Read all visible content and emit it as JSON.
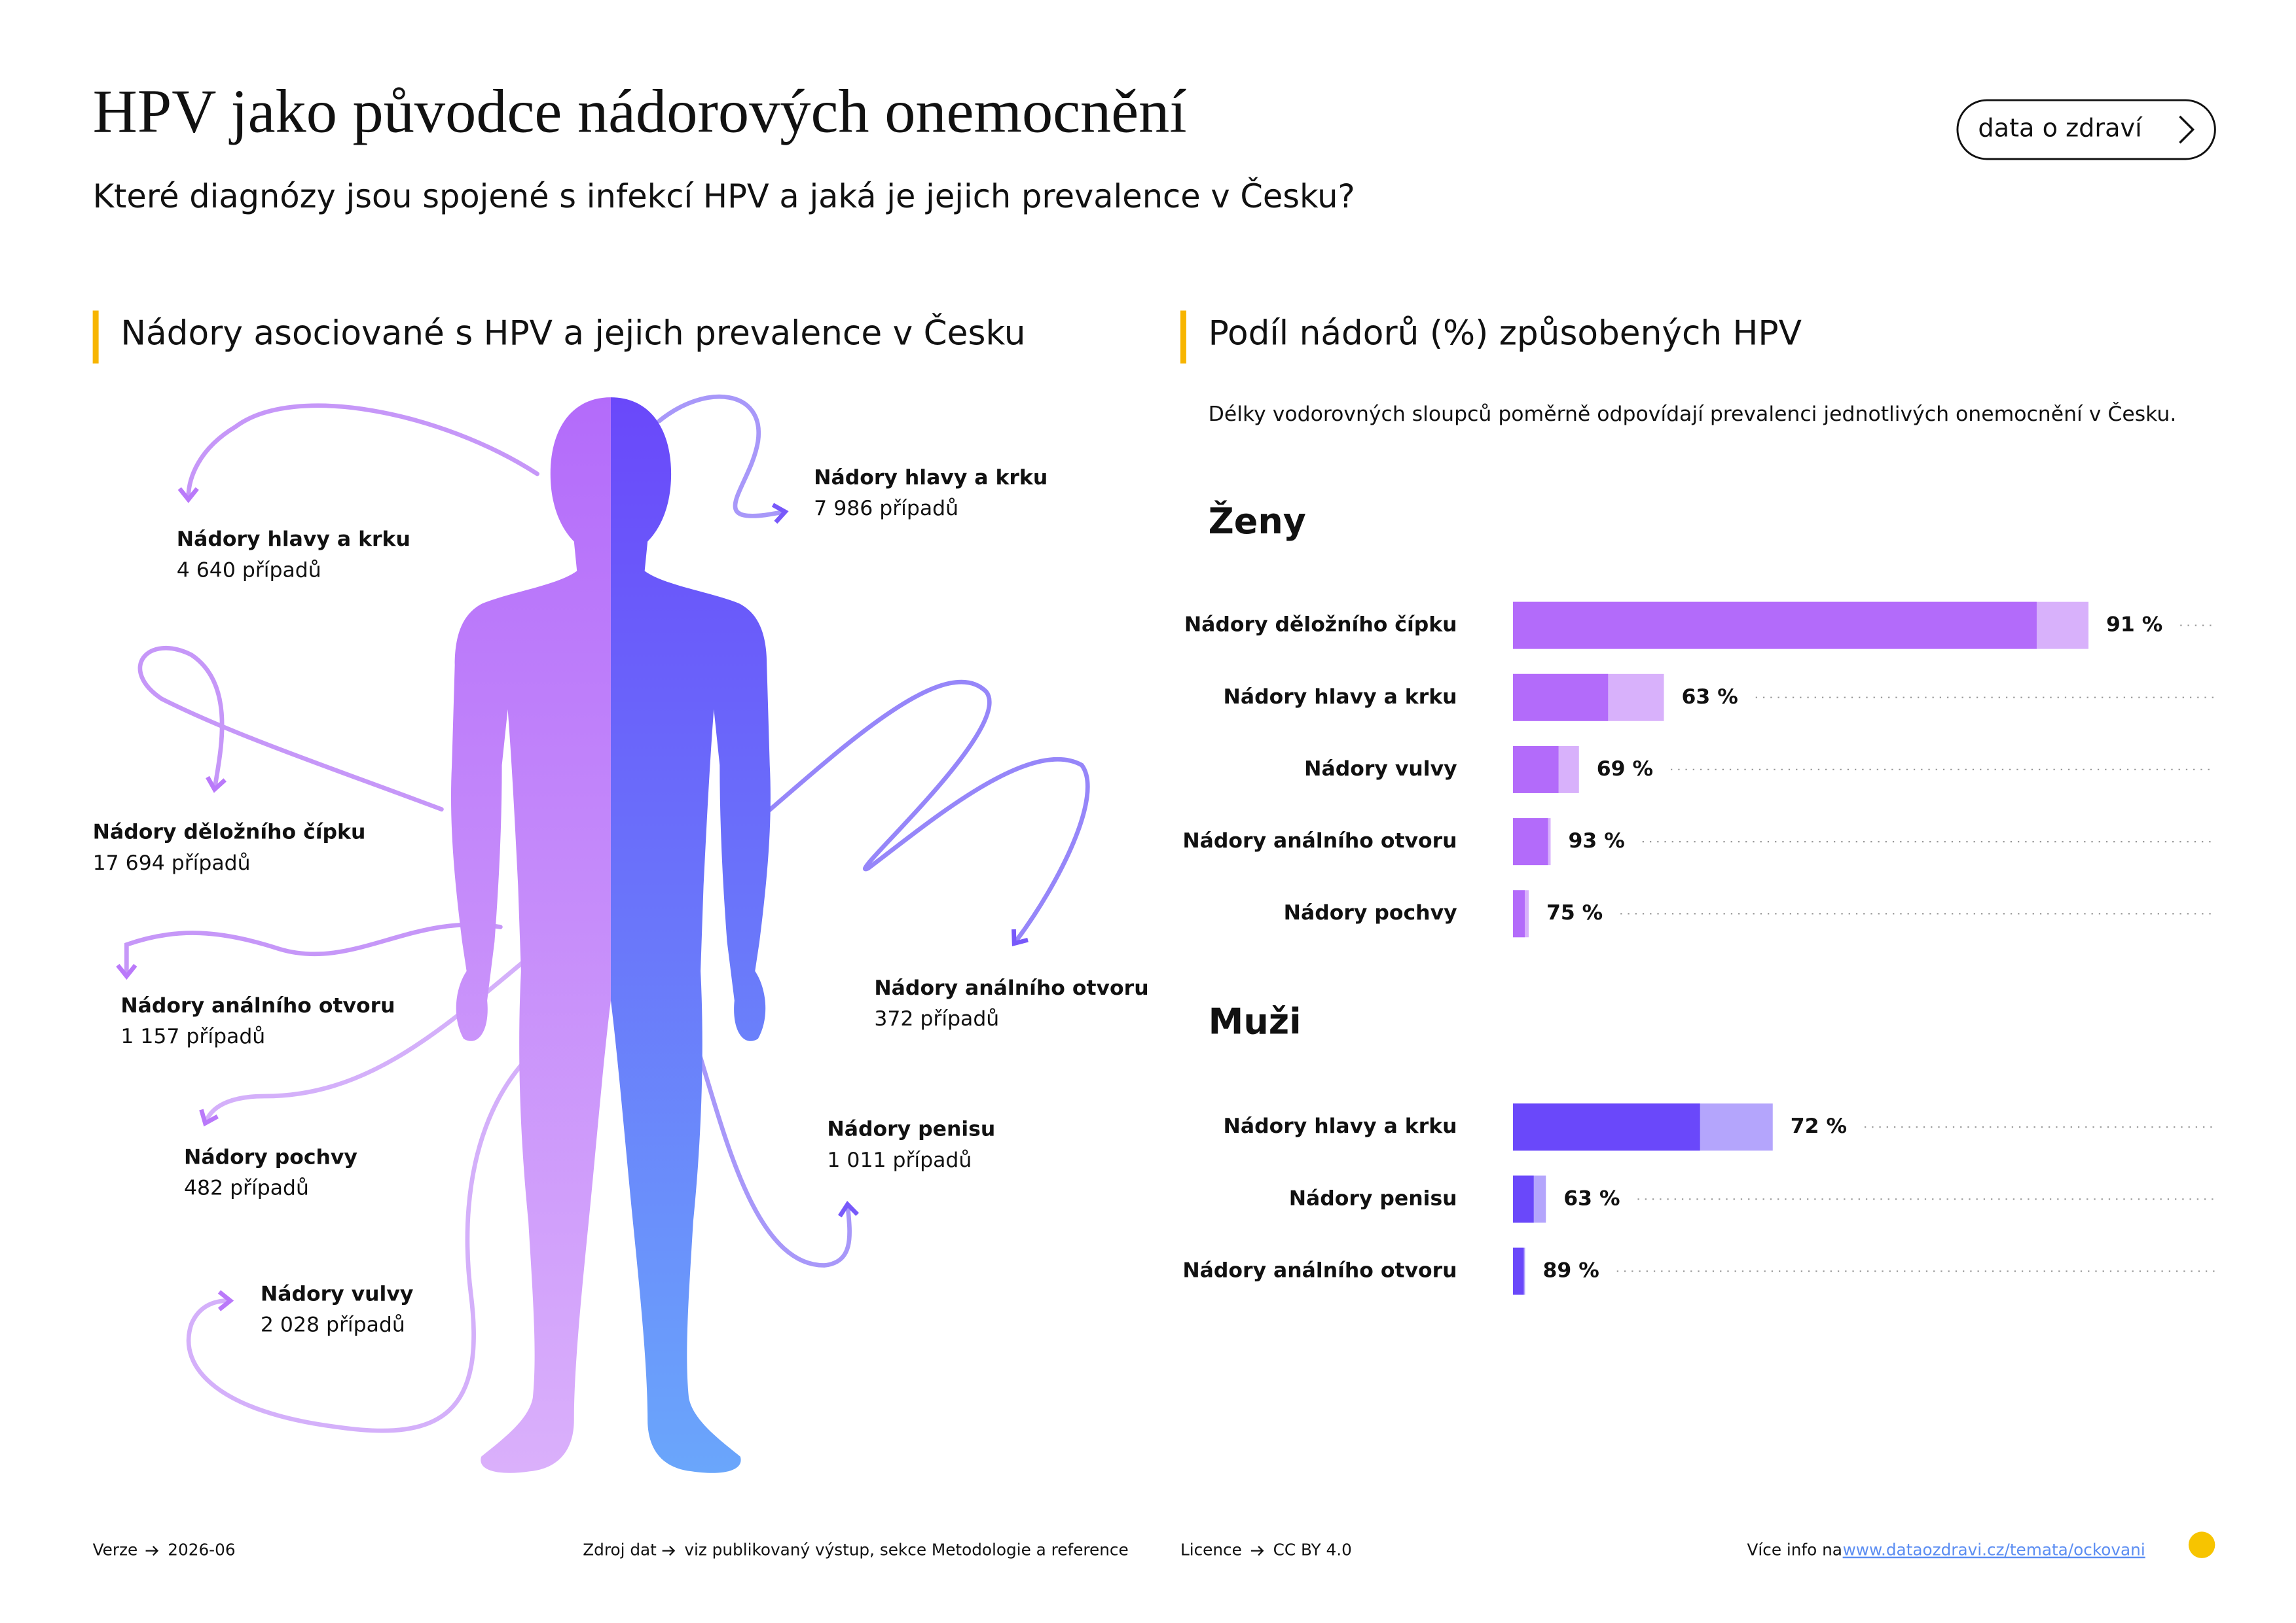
{
  "header": {
    "title": "HPV jako původce nádorových onemocnění",
    "subtitle": "Které diagnózy jsou spojené s infekcí HPV a jaká je jejich prevalence v Česku?",
    "button": "data o zdraví"
  },
  "figure": {
    "heading": "Nádory asociované s HPV a jejich prevalence v Česku"
  },
  "chart_data": {
    "type": "bar",
    "title": "Podíl nádorů (%) způsobených HPV",
    "subtitle": "Délky vodorovných sloupců poměrně odpovídají prevalenci jednotlivých onemocnění v Česku.",
    "groups": [
      {
        "name": "Ženy",
        "color": "#b36bfa",
        "light_color": "#d8b1fb",
        "categories": [
          "Nádory děložního čípku",
          "Nádory hlavy a krku",
          "Nádory vulvy",
          "Nádory análního otvoru",
          "Nádory pochvy"
        ],
        "values": [
          91,
          63,
          69,
          93,
          75
        ],
        "value_labels": [
          "91 %",
          "63 %",
          "69 %",
          "93 %",
          "75 %"
        ],
        "prevalence": [
          17694,
          4640,
          2028,
          1157,
          482
        ],
        "prevalence_labels": [
          "17 694 případů",
          "4 640 případů",
          "2 028 případů",
          "1 157 případů",
          "482 případů"
        ]
      },
      {
        "name": "Muži",
        "color": "#6a48fa",
        "light_color": "#b4a5fc",
        "categories": [
          "Nádory hlavy a krku",
          "Nádory penisu",
          "Nádory análního otvoru"
        ],
        "values": [
          72,
          63,
          89
        ],
        "value_labels": [
          "72 %",
          "63 %",
          "89 %"
        ],
        "prevalence": [
          7986,
          1011,
          372
        ],
        "prevalence_labels": [
          "7 986 případů",
          "1 011 případů",
          "372 případů"
        ]
      }
    ]
  },
  "footer": {
    "version_label": "Verze",
    "version": "2026-06",
    "source_label": "Zdroj dat",
    "source": "viz publikovaný výstup, sekce Metodologie a reference",
    "license_label": "Licence",
    "license": "CC BY 4.0",
    "more_label": "Více info na",
    "more_link": "www.dataozdravi.cz/temata/ockovani"
  }
}
